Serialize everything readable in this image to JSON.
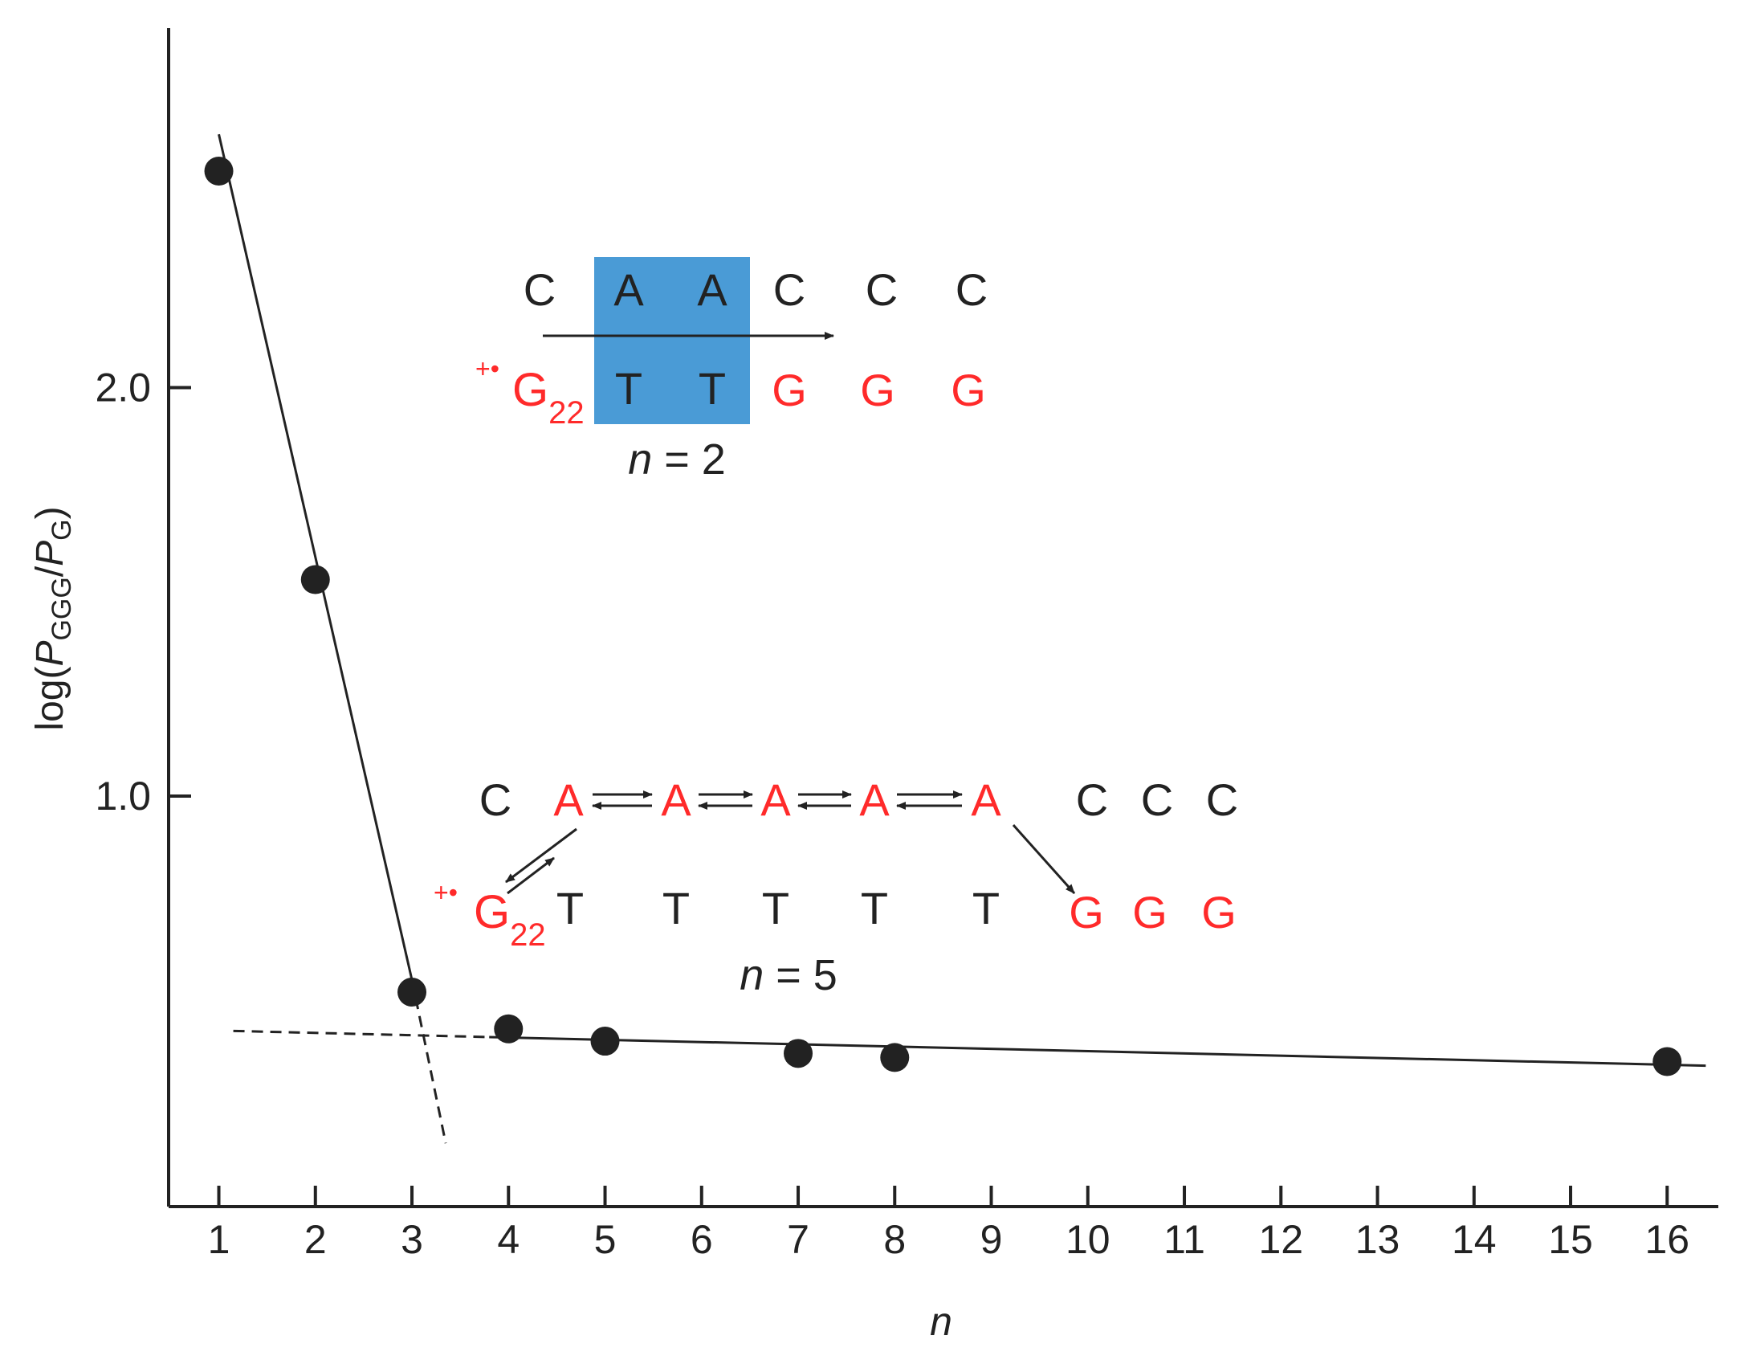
{
  "chart_data": {
    "type": "scatter",
    "xlabel": "n",
    "ylabel": {
      "prefix": "log(",
      "p1": "P",
      "s1": "GGG",
      "slash": "/",
      "p2": "P",
      "s2": "G",
      "suffix": ")"
    },
    "x_ticks": [
      1,
      2,
      3,
      4,
      5,
      6,
      7,
      8,
      9,
      10,
      11,
      12,
      13,
      14,
      15,
      16
    ],
    "y_ticks": [
      {
        "value": 1.0,
        "label": "1.0"
      },
      {
        "value": 2.0,
        "label": "2.0"
      }
    ],
    "xlim": [
      0.48,
      16.53
    ],
    "ylim": [
      -0.005,
      2.88
    ],
    "points": [
      {
        "x": 1,
        "y": 2.53
      },
      {
        "x": 2,
        "y": 1.53
      },
      {
        "x": 3,
        "y": 0.52
      },
      {
        "x": 4,
        "y": 0.43
      },
      {
        "x": 5,
        "y": 0.4
      },
      {
        "x": 7,
        "y": 0.37
      },
      {
        "x": 8,
        "y": 0.36
      },
      {
        "x": 16,
        "y": 0.35
      }
    ],
    "fit_lines": [
      {
        "name": "steep fit",
        "style": "solid",
        "x": [
          1,
          3
        ],
        "y": [
          2.62,
          0.55
        ]
      },
      {
        "name": "steep fit extrapolation",
        "style": "dashed",
        "x": [
          3,
          3.35
        ],
        "y": [
          0.55,
          0.15
        ]
      },
      {
        "name": "shallow fit",
        "style": "solid",
        "x": [
          3.8,
          16.4
        ],
        "y": [
          0.41,
          0.34
        ]
      },
      {
        "name": "shallow fit extrapolation",
        "style": "dashed",
        "x": [
          1.15,
          3.8
        ],
        "y": [
          0.425,
          0.41
        ]
      }
    ],
    "grid": false,
    "colors": {
      "red": "#ff2a2a",
      "black": "#222222",
      "box": "#4a9bd6"
    },
    "inset_n2": {
      "top": [
        "C",
        "A",
        "A",
        "C",
        "C",
        "C"
      ],
      "radical": "+•",
      "bottom_first": "G",
      "bottom_first_sub": "22",
      "bottom": [
        "T",
        "T",
        "G",
        "G",
        "G"
      ],
      "label": {
        "n": "n",
        "rest": " = 2"
      }
    },
    "inset_n5": {
      "top_first": "C",
      "top_a": [
        "A",
        "A",
        "A",
        "A",
        "A"
      ],
      "top_end": [
        "C",
        "C",
        "C"
      ],
      "radical": "+•",
      "bottom_first": "G",
      "bottom_first_sub": "22",
      "bottom_t": [
        "T",
        "T",
        "T",
        "T",
        "T"
      ],
      "bottom_end": [
        "G",
        "G",
        "G"
      ],
      "label": {
        "n": "n",
        "rest": " = 5"
      }
    }
  }
}
